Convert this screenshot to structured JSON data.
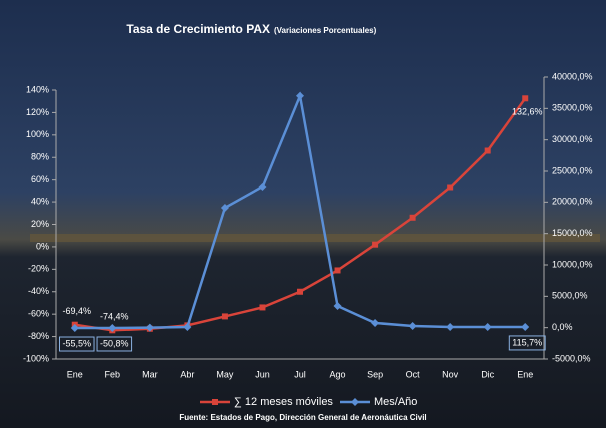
{
  "chart_data": {
    "type": "line",
    "title": "Tasa de Crecimiento PAX",
    "subtitle": "(Variaciones Porcentuales)",
    "source": "Fuente: Estados de Pago, Dirección General de Aeronáutica Civil",
    "categories": [
      "Ene",
      "Feb",
      "Mar",
      "Abr",
      "May",
      "Jun",
      "Jul",
      "Ago",
      "Sep",
      "Oct",
      "Nov",
      "Dic",
      "Ene"
    ],
    "series": [
      {
        "name": "∑ 12 meses móviles",
        "color": "#d9443a",
        "axis": "y",
        "values": [
          -69.4,
          -74.4,
          -73,
          -70,
          -62,
          -54,
          -40,
          -21,
          2,
          26,
          53,
          86,
          132.6
        ],
        "value_labels": [
          "-69,4%",
          "-74,4%",
          null,
          null,
          null,
          null,
          null,
          null,
          null,
          null,
          null,
          null,
          "132,6%"
        ]
      },
      {
        "name": "Mes/Año",
        "color": "#5b8fd6",
        "axis": "y2",
        "values": [
          -55.5,
          -50.8,
          0,
          100,
          19100,
          22450,
          37000,
          3450,
          750,
          270,
          110,
          100,
          115.7
        ],
        "value_labels": [
          "-55,5%",
          "-50,8%",
          null,
          null,
          null,
          null,
          null,
          null,
          null,
          null,
          null,
          null,
          "115,7%"
        ]
      }
    ],
    "ylim": [
      -100,
      140
    ],
    "yticks": [
      {
        "value": -100,
        "label": "-100%"
      },
      {
        "value": -80,
        "label": "-80%"
      },
      {
        "value": -60,
        "label": "-60%"
      },
      {
        "value": -40,
        "label": "-40%"
      },
      {
        "value": -20,
        "label": "-20%"
      },
      {
        "value": 0,
        "label": "0%"
      },
      {
        "value": 20,
        "label": "20%"
      },
      {
        "value": 40,
        "label": "40%"
      },
      {
        "value": 60,
        "label": "60%"
      },
      {
        "value": 80,
        "label": "80%"
      },
      {
        "value": 100,
        "label": "100%"
      },
      {
        "value": 120,
        "label": "120%"
      },
      {
        "value": 140,
        "label": "140%"
      }
    ],
    "y2lim": [
      -5000,
      40000
    ],
    "y2ticks": [
      {
        "value": -5000,
        "label": "-5000,0%"
      },
      {
        "value": 0,
        "label": "0,0%"
      },
      {
        "value": 5000,
        "label": "5000,0%"
      },
      {
        "value": 10000,
        "label": "10000,0%"
      },
      {
        "value": 15000,
        "label": "15000,0%"
      },
      {
        "value": 20000,
        "label": "20000,0%"
      },
      {
        "value": 25000,
        "label": "25000,0%"
      },
      {
        "value": 30000,
        "label": "30000,0%"
      },
      {
        "value": 35000,
        "label": "35000,0%"
      },
      {
        "value": 40000,
        "label": "40000,0%"
      }
    ],
    "legend": "bottom"
  }
}
